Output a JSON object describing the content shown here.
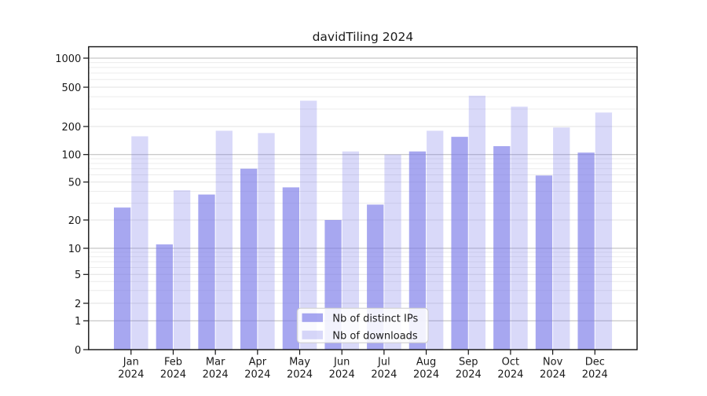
{
  "title": "davidTiling 2024",
  "chart_data": {
    "type": "bar",
    "title": "davidTiling 2024",
    "months": [
      "Jan",
      "Feb",
      "Mar",
      "Apr",
      "May",
      "Jun",
      "Jul",
      "Aug",
      "Sep",
      "Oct",
      "Nov",
      "Dec"
    ],
    "year_label": "2024",
    "categories": [
      "Jan 2024",
      "Feb 2024",
      "Mar 2024",
      "Apr 2024",
      "May 2024",
      "Jun 2024",
      "Jul 2024",
      "Aug 2024",
      "Sep 2024",
      "Oct 2024",
      "Nov 2024",
      "Dec 2024"
    ],
    "series": [
      {
        "name": "Nb of distinct IPs",
        "values": [
          27,
          11,
          37,
          70,
          44,
          20,
          29,
          108,
          155,
          123,
          59,
          105
        ]
      },
      {
        "name": "Nb of downloads",
        "values": [
          157,
          41,
          180,
          170,
          365,
          108,
          100,
          180,
          410,
          318,
          195,
          277
        ]
      }
    ],
    "y_ticks": [
      0,
      1,
      2,
      5,
      10,
      20,
      50,
      100,
      200,
      500,
      1000
    ],
    "y_scale": "log (with 0 baseline)",
    "ylim": [
      0,
      1000
    ],
    "grid": "horizontal, log minor + major",
    "legend_position": "lower center"
  },
  "colors": {
    "bar_distinct_ips": "rgba(120,120,232,0.65)",
    "bar_downloads": "rgba(120,120,232,0.28)",
    "grid_major": "#b9b9b9",
    "grid_mid": "#e2e2e2",
    "grid_minor": "#ececec",
    "axis": "#111111",
    "text": "#1a1a1a",
    "legend_border": "#cccccc",
    "legend_bg": "rgba(255,255,255,0.85)"
  }
}
